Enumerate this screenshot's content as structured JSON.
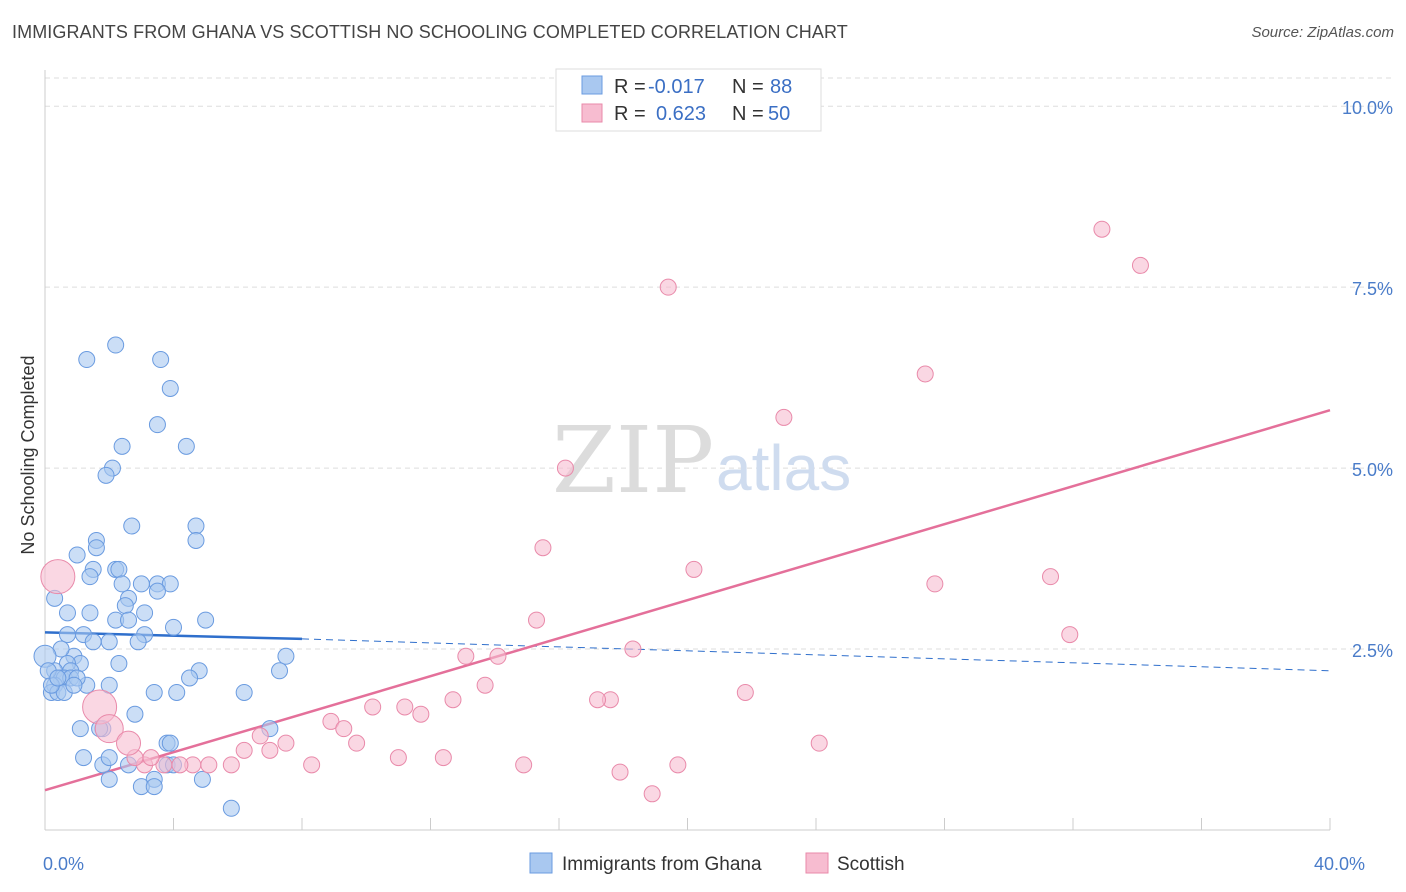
{
  "title": "IMMIGRANTS FROM GHANA VS SCOTTISH NO SCHOOLING COMPLETED CORRELATION CHART",
  "source": "Source: ZipAtlas.com",
  "watermark": {
    "part1": "ZIP",
    "part2": "atlas"
  },
  "colors": {
    "blue_fill": "#a9c8f0",
    "blue_stroke": "#6a9be0",
    "blue_line": "#2f6fcc",
    "pink_fill": "#f7bcd0",
    "pink_stroke": "#e98aaa",
    "pink_line": "#e4709a",
    "grid": "#dddddd",
    "axis_text": "#4a7cc9"
  },
  "legend_top": {
    "rows": [
      {
        "r_label": "R =",
        "r_value": "-0.017",
        "n_label": "N =",
        "n_value": "88",
        "color": "#a9c8f0"
      },
      {
        "r_label": "R =",
        "r_value": "0.623",
        "n_label": "N =",
        "n_value": "50",
        "color": "#f7bcd0"
      }
    ]
  },
  "legend_bottom": [
    {
      "label": "Immigrants from Ghana",
      "color": "#a9c8f0"
    },
    {
      "label": "Scottish",
      "color": "#f7bcd0"
    }
  ],
  "chart_data": {
    "type": "scatter",
    "title": "IMMIGRANTS FROM GHANA VS SCOTTISH NO SCHOOLING COMPLETED CORRELATION CHART",
    "xlabel": "",
    "ylabel": "No Schooling Completed",
    "xlim": [
      0,
      40
    ],
    "ylim": [
      0,
      10.5
    ],
    "x_tick_labels": [
      {
        "value": 0,
        "label": "0.0%"
      },
      {
        "value": 40,
        "label": "40.0%"
      }
    ],
    "x_minor_ticks": [
      4,
      8,
      12,
      16,
      20,
      24,
      28,
      32,
      36,
      40
    ],
    "y_ticks": [
      {
        "value": 2.5,
        "label": "2.5%"
      },
      {
        "value": 5.0,
        "label": "5.0%"
      },
      {
        "value": 7.5,
        "label": "7.5%"
      },
      {
        "value": 10.0,
        "label": "10.0%"
      }
    ],
    "grid": true,
    "legend": "top-center",
    "series": [
      {
        "name": "Immigrants from Ghana",
        "color": "#a9c8f0",
        "points": [
          [
            2.2,
            6.7
          ],
          [
            1.3,
            6.5
          ],
          [
            3.6,
            6.5
          ],
          [
            3.9,
            6.1
          ],
          [
            3.5,
            5.6
          ],
          [
            2.4,
            5.3
          ],
          [
            4.4,
            5.3
          ],
          [
            2.1,
            5.0
          ],
          [
            1.9,
            4.9
          ],
          [
            4.7,
            4.2
          ],
          [
            2.7,
            4.2
          ],
          [
            1.6,
            4.0
          ],
          [
            4.7,
            4.0
          ],
          [
            1.6,
            3.9
          ],
          [
            1.0,
            3.8
          ],
          [
            2.2,
            3.6
          ],
          [
            1.5,
            3.6
          ],
          [
            2.3,
            3.6
          ],
          [
            1.4,
            3.5
          ],
          [
            2.4,
            3.4
          ],
          [
            3.0,
            3.4
          ],
          [
            3.5,
            3.4
          ],
          [
            3.9,
            3.4
          ],
          [
            0.3,
            3.2
          ],
          [
            2.6,
            3.2
          ],
          [
            3.5,
            3.3
          ],
          [
            1.4,
            3.0
          ],
          [
            0.7,
            3.0
          ],
          [
            2.5,
            3.1
          ],
          [
            2.2,
            2.9
          ],
          [
            3.1,
            3.0
          ],
          [
            2.6,
            2.9
          ],
          [
            5.0,
            2.9
          ],
          [
            0.7,
            2.7
          ],
          [
            1.2,
            2.7
          ],
          [
            3.1,
            2.7
          ],
          [
            4.0,
            2.8
          ],
          [
            2.9,
            2.6
          ],
          [
            2.0,
            2.6
          ],
          [
            1.5,
            2.6
          ],
          [
            0.9,
            2.4
          ],
          [
            0.5,
            2.5
          ],
          [
            1.1,
            2.3
          ],
          [
            2.3,
            2.3
          ],
          [
            0.7,
            2.3
          ],
          [
            7.5,
            2.4
          ],
          [
            0.8,
            2.2
          ],
          [
            7.3,
            2.2
          ],
          [
            4.8,
            2.2
          ],
          [
            0.3,
            2.2
          ],
          [
            0.5,
            2.1
          ],
          [
            0.6,
            2.1
          ],
          [
            0.8,
            2.1
          ],
          [
            4.5,
            2.1
          ],
          [
            0.3,
            2.0
          ],
          [
            1.3,
            2.0
          ],
          [
            0.2,
            1.9
          ],
          [
            0.4,
            1.9
          ],
          [
            0.6,
            1.9
          ],
          [
            4.1,
            1.9
          ],
          [
            3.4,
            1.9
          ],
          [
            6.2,
            1.9
          ],
          [
            0.2,
            2.0
          ],
          [
            2.8,
            1.6
          ],
          [
            1.1,
            1.4
          ],
          [
            7.0,
            1.4
          ],
          [
            1.8,
            1.4
          ],
          [
            1.7,
            1.4
          ],
          [
            3.8,
            1.2
          ],
          [
            3.9,
            1.2
          ],
          [
            1.2,
            1.0
          ],
          [
            2.6,
            0.9
          ],
          [
            1.8,
            0.9
          ],
          [
            2.0,
            1.0
          ],
          [
            3.8,
            0.9
          ],
          [
            4.0,
            0.9
          ],
          [
            2.0,
            0.7
          ],
          [
            3.4,
            0.7
          ],
          [
            4.9,
            0.7
          ],
          [
            3.0,
            0.6
          ],
          [
            3.4,
            0.6
          ],
          [
            5.8,
            0.3
          ],
          [
            0.0,
            2.4
          ],
          [
            0.1,
            2.2
          ],
          [
            0.4,
            2.1
          ],
          [
            1.0,
            2.1
          ],
          [
            0.9,
            2.0
          ],
          [
            2.0,
            2.0
          ]
        ]
      },
      {
        "name": "Scottish",
        "color": "#f7bcd0",
        "points": [
          [
            32.9,
            8.3
          ],
          [
            34.1,
            7.8
          ],
          [
            19.4,
            7.5
          ],
          [
            27.4,
            6.3
          ],
          [
            23.0,
            5.7
          ],
          [
            16.2,
            5.0
          ],
          [
            15.5,
            3.9
          ],
          [
            20.2,
            3.6
          ],
          [
            27.7,
            3.4
          ],
          [
            31.3,
            3.5
          ],
          [
            15.3,
            2.9
          ],
          [
            18.3,
            2.5
          ],
          [
            31.9,
            2.7
          ],
          [
            13.1,
            2.4
          ],
          [
            14.1,
            2.4
          ],
          [
            13.7,
            2.0
          ],
          [
            21.8,
            1.9
          ],
          [
            17.6,
            1.8
          ],
          [
            17.2,
            1.8
          ],
          [
            12.7,
            1.8
          ],
          [
            10.2,
            1.7
          ],
          [
            11.2,
            1.7
          ],
          [
            11.7,
            1.6
          ],
          [
            8.9,
            1.5
          ],
          [
            9.3,
            1.4
          ],
          [
            9.7,
            1.2
          ],
          [
            7.5,
            1.2
          ],
          [
            6.7,
            1.3
          ],
          [
            7.0,
            1.1
          ],
          [
            6.2,
            1.1
          ],
          [
            24.1,
            1.2
          ],
          [
            11.0,
            1.0
          ],
          [
            12.4,
            1.0
          ],
          [
            14.9,
            0.9
          ],
          [
            19.7,
            0.9
          ],
          [
            8.3,
            0.9
          ],
          [
            5.8,
            0.9
          ],
          [
            5.1,
            0.9
          ],
          [
            4.6,
            0.9
          ],
          [
            4.2,
            0.9
          ],
          [
            3.7,
            0.9
          ],
          [
            3.1,
            0.9
          ],
          [
            3.3,
            1.0
          ],
          [
            2.8,
            1.0
          ],
          [
            17.9,
            0.8
          ],
          [
            18.9,
            0.5
          ],
          [
            0.4,
            3.5
          ],
          [
            1.7,
            1.7
          ],
          [
            2.0,
            1.4
          ],
          [
            2.6,
            1.2
          ]
        ]
      }
    ],
    "trend_lines": [
      {
        "series": "Immigrants from Ghana",
        "solid_from": [
          0,
          2.73
        ],
        "solid_to": [
          8,
          2.64
        ],
        "dashed_to": [
          40,
          2.2
        ]
      },
      {
        "series": "Scottish",
        "from": [
          0,
          0.55
        ],
        "to": [
          40,
          5.8
        ]
      }
    ]
  }
}
